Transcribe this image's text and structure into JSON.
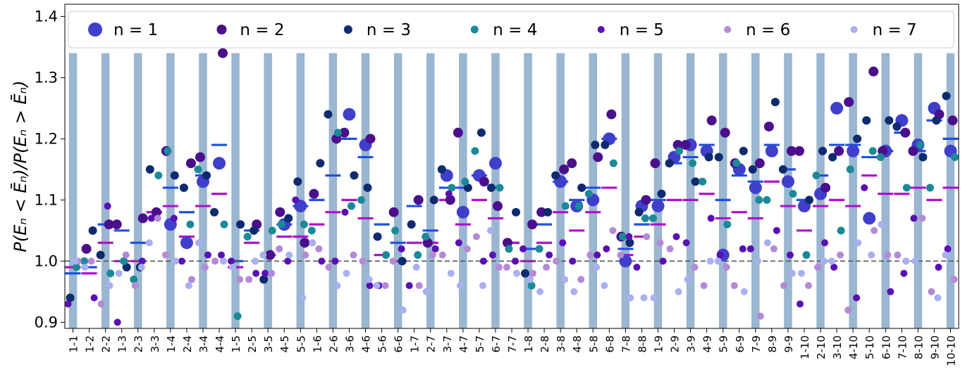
{
  "chart_data": {
    "type": "scatter",
    "title": "",
    "xlabel": "",
    "ylabel": "P(E_n < Ē_n)/P(E_n > Ē_n)",
    "ylabel_display": "P(Eₙ < Ēₙ)/P(Eₙ > Ēₙ)",
    "ylim": [
      0.89,
      1.42
    ],
    "yticks": [
      "0.9",
      "1.0",
      "1.1",
      "1.2",
      "1.3",
      "1.4"
    ],
    "yticks_values": [
      0.9,
      1.0,
      1.1,
      1.2,
      1.3,
      1.4
    ],
    "reference_line": 1.0,
    "legend_position": "top",
    "shaded_band_top": 1.34,
    "categories": [
      "1-1",
      "1-2",
      "2-2",
      "1-3",
      "2-3",
      "3-3",
      "1-4",
      "2-4",
      "3-4",
      "4-4",
      "1-5",
      "2-5",
      "3-5",
      "4-5",
      "5-5",
      "1-6",
      "2-6",
      "3-6",
      "4-6",
      "5-6",
      "6-6",
      "1-7",
      "2-7",
      "3-7",
      "4-7",
      "5-7",
      "6-7",
      "7-7",
      "1-8",
      "2-8",
      "3-8",
      "4-8",
      "5-8",
      "6-8",
      "7-8",
      "8-8",
      "1-9",
      "2-9",
      "3-9",
      "4-9",
      "5-9",
      "6-9",
      "7-9",
      "8-9",
      "9-9",
      "1-10",
      "2-10",
      "3-10",
      "4-10",
      "5-10",
      "6-10",
      "7-10",
      "8-10",
      "9-10",
      "10-10"
    ],
    "series": [
      {
        "name": "n = 1",
        "color": "#3f3fcc",
        "size": 9,
        "values": [
          null,
          null,
          null,
          null,
          null,
          null,
          1.06,
          1.03,
          1.13,
          1.16,
          null,
          null,
          null,
          1.06,
          1.09,
          null,
          null,
          1.24,
          1.19,
          null,
          null,
          null,
          null,
          1.14,
          1.08,
          1.14,
          1.16,
          null,
          null,
          null,
          1.13,
          1.09,
          1.1,
          1.2,
          1.0,
          1.09,
          1.09,
          1.17,
          1.19,
          1.18,
          1.01,
          1.15,
          1.12,
          1.18,
          1.13,
          1.09,
          1.11,
          1.25,
          1.18,
          1.07,
          1.18,
          1.23,
          1.19,
          1.25,
          1.18
        ]
      },
      {
        "name": "n = 2",
        "color": "#4b0f8c",
        "size": 7,
        "values": [
          null,
          1.02,
          1.06,
          1.06,
          1.07,
          1.08,
          1.18,
          1.16,
          1.17,
          1.34,
          null,
          1.06,
          1.01,
          1.08,
          1.03,
          1.11,
          1.2,
          1.21,
          1.2,
          null,
          1.08,
          1.1,
          1.03,
          1.1,
          1.21,
          1.13,
          1.09,
          1.03,
          1.06,
          1.08,
          1.15,
          1.16,
          1.17,
          1.24,
          1.04,
          1.1,
          1.16,
          1.19,
          1.19,
          1.23,
          1.21,
          1.16,
          1.16,
          1.22,
          1.18,
          1.18,
          1.12,
          1.18,
          1.26,
          1.31,
          1.18,
          1.21,
          1.18,
          1.24,
          1.23
        ]
      },
      {
        "name": "n = 3",
        "color": "#0d2b6e",
        "size": 6,
        "values": [
          0.94,
          1.05,
          1.01,
          0.99,
          0.99,
          1.15,
          1.14,
          1.12,
          1.14,
          1.08,
          1.06,
          1.05,
          0.97,
          1.07,
          1.13,
          1.16,
          1.24,
          1.14,
          1.12,
          1.04,
          1.0,
          1.06,
          1.1,
          1.15,
          1.12,
          1.21,
          1.12,
          1.08,
          0.98,
          1.08,
          1.14,
          1.12,
          1.19,
          1.19,
          1.03,
          1.08,
          1.11,
          1.16,
          1.13,
          1.17,
          1.17,
          1.18,
          1.15,
          1.26,
          1.15,
          1.1,
          1.18,
          1.17,
          1.2,
          1.23,
          1.23,
          1.22,
          1.17,
          1.23,
          1.27
        ]
      },
      {
        "name": "n = 4",
        "color": "#1a8a99",
        "size": 5.5,
        "values": [
          0.99,
          1.0,
          0.98,
          1.0,
          0.97,
          1.14,
          1.18,
          1.06,
          1.15,
          1.06,
          0.91,
          1.04,
          1.05,
          1.06,
          1.06,
          1.05,
          1.21,
          1.09,
          1.1,
          1.01,
          1.05,
          1.01,
          1.04,
          1.12,
          1.13,
          1.18,
          1.12,
          1.02,
          0.96,
          1.02,
          1.09,
          1.09,
          1.11,
          1.16,
          1.04,
          1.07,
          1.07,
          1.18,
          1.16,
          1.13,
          1.06,
          1.16,
          1.1,
          1.1,
          1.11,
          1.01,
          1.14,
          1.05,
          1.15,
          1.18,
          1.17,
          1.12,
          1.19,
          1.12,
          1.17
        ]
      },
      {
        "name": "n = 5",
        "color": "#5a0fb5",
        "size": 5,
        "values": [
          0.93,
          0.94,
          1.09,
          0.9,
          1.0,
          1.07,
          1.07,
          1.0,
          1.01,
          1.01,
          1.0,
          0.98,
          0.98,
          1.0,
          1.1,
          1.0,
          1.0,
          1.08,
          0.96,
          0.96,
          1.02,
          0.96,
          1.02,
          1.11,
          1.03,
          1.0,
          1.01,
          1.0,
          1.02,
          1.01,
          1.03,
          1.0,
          1.01,
          1.02,
          1.04,
          0.99,
          1.0,
          1.04,
          1.03,
          1.07,
          1.01,
          1.02,
          1.02,
          1.05,
          1.01,
          0.93,
          1.03,
          0.99,
          0.94,
          1.12,
          0.95,
          0.98,
          1.07,
          0.99,
          1.02
        ]
      },
      {
        "name": "n = 6",
        "color": "#b48ad6",
        "size": 5,
        "values": [
          1.0,
          1.0,
          0.93,
          1.01,
          0.96,
          1.07,
          1.01,
          0.97,
          0.99,
          1.0,
          0.97,
          0.97,
          0.98,
          1.02,
          1.01,
          1.02,
          0.99,
          1.01,
          1.0,
          0.96,
          1.0,
          0.96,
          1.01,
          1.01,
          1.02,
          1.04,
          0.99,
          0.99,
          0.98,
          0.99,
          1.0,
          0.97,
          1.01,
          1.05,
          1.01,
          1.04,
          1.03,
          1.02,
          0.99,
          0.96,
          0.99,
          0.96,
          0.91,
          1.02,
          0.96,
          0.96,
          0.99,
          1.01,
          0.92,
          1.05,
          1.01,
          1.01,
          1.07,
          0.95,
          0.97
        ]
      },
      {
        "name": "n = 7",
        "color": "#a8b0f0",
        "size": 5,
        "values": [
          1.0,
          0.99,
          0.96,
          0.98,
          0.99,
          1.03,
          1.0,
          0.96,
          1.03,
          1.0,
          0.99,
          1.0,
          1.01,
          1.01,
          0.94,
          1.03,
          0.96,
          0.98,
          0.97,
          0.96,
          0.92,
          0.99,
          0.95,
          0.98,
          0.96,
          0.96,
          1.05,
          0.98,
          0.97,
          0.95,
          0.97,
          0.95,
          0.99,
          0.96,
          0.94,
          0.94,
          0.94,
          0.95,
          0.97,
          1.0,
          1.0,
          0.95,
          1.0,
          1.03,
          0.98,
          0.98,
          1.0,
          1.0,
          1.03,
          1.01,
          1.06,
          1.0,
          1.0,
          0.94,
          1.01
        ]
      }
    ],
    "mean_lines": [
      {
        "color": "#1e4fe0",
        "values": [
          0.98,
          0.99,
          1.06,
          1.05,
          1.03,
          1.08,
          1.12,
          1.08,
          1.14,
          1.19,
          1.0,
          1.05,
          1.01,
          1.06,
          1.09,
          1.1,
          1.14,
          1.2,
          1.17,
          1.06,
          1.03,
          1.09,
          1.05,
          1.12,
          1.12,
          1.14,
          1.12,
          1.03,
          1.02,
          1.06,
          1.13,
          1.1,
          1.12,
          1.2,
          1.02,
          1.06,
          1.1,
          1.16,
          1.17,
          1.19,
          1.1,
          1.14,
          1.13,
          1.19,
          1.15,
          1.1,
          1.14,
          1.19,
          1.19,
          1.17,
          1.18,
          1.21,
          1.18,
          1.23,
          1.2
        ]
      },
      {
        "color": "#b010cc",
        "values": [
          0.99,
          0.98,
          1.03,
          1.0,
          1.0,
          1.08,
          1.09,
          1.04,
          1.09,
          1.11,
          0.99,
          1.03,
          1.01,
          1.04,
          1.04,
          1.06,
          1.08,
          1.1,
          1.07,
          1.01,
          1.0,
          1.03,
          1.03,
          1.1,
          1.06,
          1.1,
          1.07,
          1.03,
          1.0,
          1.03,
          1.08,
          1.05,
          1.08,
          1.12,
          1.01,
          1.04,
          1.06,
          1.1,
          1.1,
          1.11,
          1.07,
          1.08,
          1.07,
          1.13,
          1.09,
          1.05,
          1.09,
          1.1,
          1.09,
          1.14,
          1.11,
          1.11,
          1.12,
          1.1,
          1.12
        ]
      }
    ]
  }
}
